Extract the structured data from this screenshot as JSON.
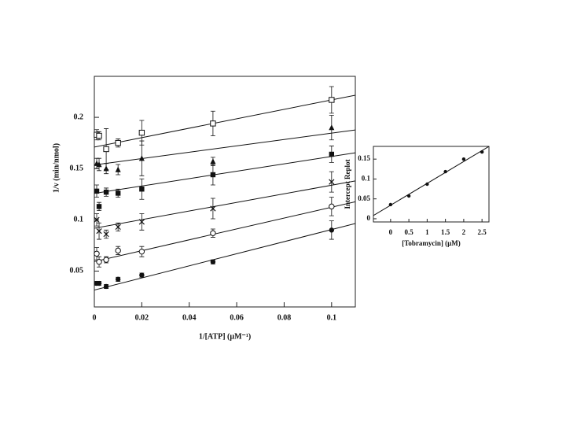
{
  "chart_data": [
    {
      "type": "scatter",
      "xlabel": "1/[ATP] (µM⁻¹)",
      "ylabel": "1/v (min/nmol)",
      "x": [
        0.001,
        0.002,
        0.005,
        0.01,
        0.02,
        0.05,
        0.1
      ],
      "xlim": [
        0,
        0.11
      ],
      "xticks": [
        0,
        0.02,
        0.04,
        0.06,
        0.08,
        0.1
      ],
      "ylim": [
        0.015,
        0.24
      ],
      "yticks": [
        0.05,
        0.1,
        0.15,
        0.2
      ],
      "color": "#111111",
      "series": [
        {
          "marker": "open-square",
          "values": [
            0.183,
            0.182,
            0.169,
            0.175,
            0.185,
            0.194,
            0.217
          ],
          "errors": [
            0.005,
            0.004,
            0.02,
            0.004,
            0.012,
            0.012,
            0.013
          ],
          "intercept": 0.171,
          "slope": 0.46
        },
        {
          "marker": "filled-triangle",
          "values": [
            0.155,
            0.154,
            0.15,
            0.149,
            0.16,
            0.157,
            0.19
          ],
          "errors": [
            0.005,
            0.006,
            0.005,
            0.005,
            0.017,
            0.004,
            0.012
          ],
          "intercept": 0.1536,
          "slope": 0.31
        },
        {
          "marker": "filled-square",
          "values": [
            0.128,
            0.113,
            0.127,
            0.126,
            0.13,
            0.144,
            0.164
          ],
          "errors": [
            0.006,
            0.004,
            0.004,
            0.004,
            0.01,
            0.01,
            0.008
          ],
          "intercept": 0.1258,
          "slope": 0.36
        },
        {
          "marker": "x",
          "values": [
            0.1,
            0.089,
            0.086,
            0.093,
            0.098,
            0.111,
            0.137
          ],
          "errors": [
            0.006,
            0.008,
            0.004,
            0.004,
            0.008,
            0.01,
            0.01
          ],
          "intercept": 0.0918,
          "slope": 0.42
        },
        {
          "marker": "open-circle",
          "values": [
            0.067,
            0.059,
            0.061,
            0.07,
            0.069,
            0.087,
            0.113
          ],
          "errors": [
            0.006,
            0.005,
            0.003,
            0.004,
            0.005,
            0.004,
            0.009
          ],
          "intercept": 0.0593,
          "slope": 0.53
        },
        {
          "marker": "filled-circle",
          "values": [
            0.038,
            0.038,
            0.035,
            0.042,
            0.046,
            0.059,
            0.09
          ],
          "errors": [
            0.002,
            0.002,
            0.002,
            0.002,
            0.002,
            0.002,
            0.009
          ],
          "intercept": 0.0315,
          "slope": 0.59
        }
      ]
    },
    {
      "type": "scatter",
      "xlabel": "[Tobramycin] (µM)",
      "ylabel": "Intercept Replot",
      "x": [
        0,
        0.5,
        1,
        1.5,
        2,
        2.5
      ],
      "xlim": [
        -0.47,
        2.69
      ],
      "xticks": [
        0,
        0.5,
        1,
        1.5,
        2,
        2.5
      ],
      "ylim": [
        -0.008,
        0.182
      ],
      "yticks": [
        0,
        0.05,
        0.1,
        0.15
      ],
      "color": "#111111",
      "series": [
        {
          "marker": "filled-circle",
          "values": [
            0.0356,
            0.0573,
            0.087,
            0.1186,
            0.15,
            0.168
          ],
          "intercept": 0.034,
          "slope": 0.055
        }
      ]
    }
  ]
}
